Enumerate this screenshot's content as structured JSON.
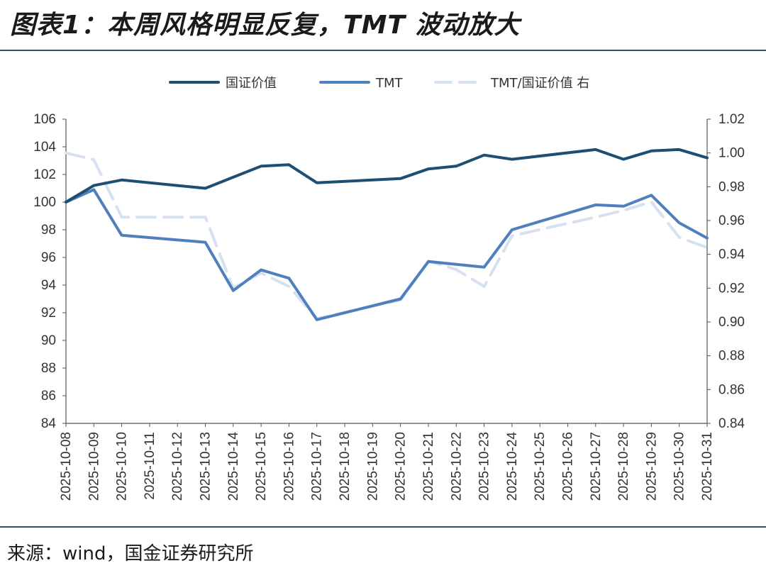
{
  "title": "图表1：本周风格明显反复，TMT 波动放大",
  "source": "来源：wind，国金证券研究所",
  "colors": {
    "value": "#1f4e73",
    "tmt": "#4f7fbd",
    "ratio": "#d5e1f1",
    "rule": "#2f4f6e"
  },
  "chart_data": {
    "type": "line",
    "x": [
      "2025-10-08",
      "2025-10-09",
      "2025-10-10",
      "2025-10-11",
      "2025-10-12",
      "2025-10-13",
      "2025-10-14",
      "2025-10-15",
      "2025-10-16",
      "2025-10-17",
      "2025-10-18",
      "2025-10-19",
      "2025-10-20",
      "2025-10-21",
      "2025-10-22",
      "2025-10-23",
      "2025-10-24",
      "2025-10-25",
      "2025-10-26",
      "2025-10-27",
      "2025-10-28",
      "2025-10-29",
      "2025-10-30",
      "2025-10-31"
    ],
    "legend_position": "top",
    "grid": false,
    "y_left": {
      "min": 84,
      "max": 106,
      "ticks": [
        84,
        86,
        88,
        90,
        92,
        94,
        96,
        98,
        100,
        102,
        104,
        106
      ]
    },
    "y_right": {
      "min": 0.84,
      "max": 1.02,
      "ticks": [
        "0.84",
        "0.86",
        "0.88",
        "0.90",
        "0.92",
        "0.94",
        "0.96",
        "0.98",
        "1.00",
        "1.02"
      ]
    },
    "series": [
      {
        "name": "国证价值",
        "axis": "left",
        "style": "solid",
        "points": [
          [
            "2025-10-08",
            100.0
          ],
          [
            "2025-10-09",
            101.2
          ],
          [
            "2025-10-10",
            101.6
          ],
          [
            "2025-10-13",
            101.0
          ],
          [
            "2025-10-14",
            101.8
          ],
          [
            "2025-10-15",
            102.6
          ],
          [
            "2025-10-16",
            102.7
          ],
          [
            "2025-10-17",
            101.4
          ],
          [
            "2025-10-20",
            101.7
          ],
          [
            "2025-10-21",
            102.4
          ],
          [
            "2025-10-22",
            102.6
          ],
          [
            "2025-10-23",
            103.4
          ],
          [
            "2025-10-24",
            103.1
          ],
          [
            "2025-10-27",
            103.8
          ],
          [
            "2025-10-28",
            103.1
          ],
          [
            "2025-10-29",
            103.7
          ],
          [
            "2025-10-30",
            103.8
          ],
          [
            "2025-10-31",
            103.2
          ]
        ]
      },
      {
        "name": "TMT",
        "axis": "left",
        "style": "solid",
        "points": [
          [
            "2025-10-08",
            100.0
          ],
          [
            "2025-10-09",
            100.9
          ],
          [
            "2025-10-10",
            97.6
          ],
          [
            "2025-10-13",
            97.1
          ],
          [
            "2025-10-14",
            93.6
          ],
          [
            "2025-10-15",
            95.1
          ],
          [
            "2025-10-16",
            94.5
          ],
          [
            "2025-10-17",
            91.5
          ],
          [
            "2025-10-20",
            93.0
          ],
          [
            "2025-10-21",
            95.7
          ],
          [
            "2025-10-22",
            95.5
          ],
          [
            "2025-10-23",
            95.3
          ],
          [
            "2025-10-24",
            98.0
          ],
          [
            "2025-10-27",
            99.8
          ],
          [
            "2025-10-28",
            99.7
          ],
          [
            "2025-10-29",
            100.5
          ],
          [
            "2025-10-30",
            98.5
          ],
          [
            "2025-10-31",
            97.4
          ]
        ]
      },
      {
        "name": "TMT/国证价值 右",
        "axis": "right",
        "style": "dashed",
        "points": [
          [
            "2025-10-08",
            1.0
          ],
          [
            "2025-10-09",
            0.996
          ],
          [
            "2025-10-10",
            0.962
          ],
          [
            "2025-10-13",
            0.962
          ],
          [
            "2025-10-14",
            0.92
          ],
          [
            "2025-10-15",
            0.929
          ],
          [
            "2025-10-16",
            0.921
          ],
          [
            "2025-10-17",
            0.902
          ],
          [
            "2025-10-20",
            0.913
          ],
          [
            "2025-10-21",
            0.936
          ],
          [
            "2025-10-22",
            0.931
          ],
          [
            "2025-10-23",
            0.921
          ],
          [
            "2025-10-24",
            0.951
          ],
          [
            "2025-10-27",
            0.962
          ],
          [
            "2025-10-28",
            0.966
          ],
          [
            "2025-10-29",
            0.971
          ],
          [
            "2025-10-30",
            0.95
          ],
          [
            "2025-10-31",
            0.944
          ]
        ]
      }
    ]
  }
}
